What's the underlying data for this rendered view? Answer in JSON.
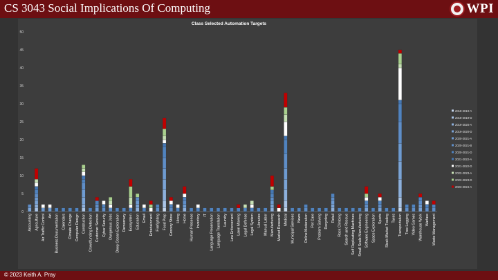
{
  "slide": {
    "title": "CS 3043 Social Implications Of Computing",
    "logo_text": "WPI",
    "footer": "© 2023 Keith A. Pray"
  },
  "colors": {
    "banner": "#6d0f12",
    "background": "#333333",
    "plot_background": "#3d3d3d"
  },
  "chart_data": {
    "type": "bar",
    "stacked": true,
    "title": "Class Selected Automation Targets",
    "ylim": [
      0,
      50
    ],
    "yticks": [
      0,
      5,
      10,
      15,
      20,
      25,
      30,
      35,
      40,
      45,
      50
    ],
    "grid": false,
    "legend_position": "right",
    "categories": [
      "Accounting",
      "Agriculture",
      "Air Traffic Control",
      "Art",
      "Business Documentation",
      "Calendars",
      "Climate Change",
      "Computer Design",
      "Construction",
      "Crowdfunding Detection",
      "Customer Service",
      "Cyber Security",
      "Dangerous Jobs",
      "Deep Ocean Exploration",
      "Democracy",
      "Ecosystem",
      "Education",
      "Email",
      "Entertainment",
      "Firefighting",
      "Food Prep",
      "Grocery Store",
      "Hiring",
      "Home",
      "Human Presence",
      "Inventory",
      "IT",
      "Language Preservation",
      "Language Translation",
      "Laundry",
      "Law Enforcement",
      "Lawn Mowing",
      "Legal Defense",
      "Legal System",
      "Libraries",
      "Manual Labor",
      "Manufacturing",
      "Market Research",
      "Medical",
      "Municipal Services",
      "News",
      "Online Moderation",
      "Pet Care",
      "Problem Solving",
      "Recycling",
      "Retail",
      "Rock Climbing",
      "Search and Rescue",
      "Self Replicating Machines",
      "Small Scale Manufacturing",
      "Software Engineering",
      "Space Exploration",
      "Sports",
      "Stock Market Trading",
      "Taxes",
      "Transportation",
      "Tree Logging",
      "Video Games",
      "Warehouse Work",
      "Warfare",
      "Waste Management"
    ],
    "series": [
      {
        "name": "2018-2019-A",
        "color": "#c6d8ee",
        "values": [
          0,
          0,
          0,
          0,
          0,
          0,
          0,
          0,
          0,
          0,
          0,
          0,
          0,
          0,
          0,
          0,
          0,
          0,
          0,
          0,
          1,
          0,
          0,
          0,
          0,
          0,
          0,
          0,
          0,
          0,
          0,
          0,
          0,
          0,
          0,
          0,
          0,
          0,
          1,
          0,
          0,
          0,
          0,
          0,
          0,
          0,
          0,
          0,
          0,
          0,
          0,
          0,
          0,
          0,
          0,
          1,
          0,
          0,
          0,
          0,
          0
        ]
      },
      {
        "name": "2018-2019-D",
        "color": "#a9c4e6",
        "values": [
          0,
          1,
          0,
          0,
          0,
          0,
          0,
          0,
          1,
          0,
          0,
          0,
          0,
          0,
          0,
          0,
          0,
          0,
          0,
          0,
          2,
          0,
          0,
          0,
          0,
          0,
          0,
          0,
          0,
          0,
          0,
          0,
          0,
          0,
          0,
          0,
          0,
          0,
          2,
          0,
          0,
          0,
          0,
          0,
          0,
          0,
          0,
          0,
          0,
          0,
          0,
          0,
          0,
          0,
          0,
          3,
          0,
          0,
          0,
          0,
          0
        ]
      },
      {
        "name": "2019-2020-A",
        "color": "#8db0dc",
        "values": [
          0,
          1,
          0,
          0,
          0,
          0,
          0,
          0,
          1,
          0,
          0,
          0,
          0,
          0,
          0,
          0,
          1,
          0,
          0,
          0,
          3,
          0,
          0,
          1,
          0,
          0,
          0,
          0,
          0,
          0,
          0,
          0,
          0,
          0,
          0,
          0,
          1,
          0,
          3,
          0,
          0,
          0,
          0,
          0,
          0,
          1,
          0,
          0,
          0,
          0,
          0,
          0,
          0,
          0,
          0,
          5,
          0,
          0,
          0,
          0,
          0
        ]
      },
      {
        "name": "2019-2020-D",
        "color": "#7ba4d6",
        "values": [
          1,
          1,
          0,
          0,
          0,
          0,
          0,
          0,
          2,
          0,
          0,
          0,
          0,
          0,
          0,
          0,
          1,
          0,
          0,
          0,
          3,
          0,
          0,
          0,
          0,
          0,
          0,
          0,
          0,
          0,
          0,
          0,
          0,
          0,
          0,
          0,
          1,
          0,
          3,
          0,
          0,
          0,
          0,
          0,
          0,
          1,
          0,
          0,
          0,
          0,
          1,
          0,
          1,
          0,
          0,
          5,
          0,
          0,
          1,
          0,
          0
        ]
      },
      {
        "name": "2020-2021-A",
        "color": "#6e9bd1",
        "values": [
          0,
          1,
          1,
          1,
          0,
          0,
          0,
          0,
          2,
          0,
          1,
          0,
          0,
          0,
          0,
          0,
          1,
          0,
          0,
          0,
          3,
          0,
          0,
          1,
          0,
          0,
          0,
          0,
          0,
          0,
          0,
          0,
          0,
          0,
          0,
          0,
          1,
          0,
          3,
          0,
          0,
          0,
          0,
          0,
          0,
          1,
          0,
          0,
          0,
          0,
          0,
          0,
          0,
          0,
          0,
          5,
          0,
          0,
          1,
          0,
          0
        ]
      },
      {
        "name": "2020-2021-B",
        "color": "#5f8ec8",
        "values": [
          1,
          1,
          0,
          0,
          0,
          0,
          0,
          0,
          2,
          0,
          1,
          1,
          1,
          0,
          0,
          0,
          1,
          0,
          0,
          1,
          3,
          1,
          0,
          1,
          0,
          0,
          0,
          0,
          0,
          0,
          0,
          0,
          0,
          0,
          0,
          0,
          1,
          0,
          4,
          0,
          0,
          1,
          0,
          0,
          0,
          1,
          0,
          0,
          0,
          0,
          1,
          0,
          1,
          0,
          0,
          6,
          1,
          1,
          1,
          1,
          1
        ]
      },
      {
        "name": "2020-2021-D",
        "color": "#5083bf",
        "values": [
          0,
          1,
          0,
          0,
          1,
          1,
          1,
          1,
          1,
          1,
          1,
          1,
          0,
          1,
          1,
          1,
          0,
          1,
          0,
          1,
          3,
          1,
          1,
          1,
          1,
          1,
          1,
          1,
          1,
          1,
          1,
          1,
          1,
          1,
          1,
          1,
          1,
          0,
          4,
          1,
          1,
          1,
          1,
          1,
          1,
          1,
          1,
          1,
          1,
          1,
          1,
          1,
          1,
          1,
          1,
          5,
          1,
          1,
          1,
          1,
          1
        ]
      },
      {
        "name": "2021-2022-A",
        "color": "#4577b3",
        "values": [
          0,
          1,
          0,
          0,
          0,
          0,
          0,
          0,
          1,
          0,
          0,
          0,
          0,
          0,
          0,
          0,
          0,
          0,
          0,
          0,
          1,
          0,
          0,
          0,
          0,
          0,
          0,
          0,
          0,
          0,
          0,
          0,
          0,
          0,
          0,
          0,
          1,
          0,
          1,
          0,
          0,
          0,
          0,
          0,
          0,
          0,
          0,
          0,
          0,
          0,
          0,
          0,
          0,
          0,
          0,
          1,
          0,
          0,
          0,
          0,
          0
        ]
      },
      {
        "name": "2021-2022-D",
        "color": "#ffffff",
        "values": [
          0,
          1,
          1,
          1,
          0,
          0,
          0,
          0,
          1,
          0,
          0,
          1,
          1,
          0,
          0,
          1,
          0,
          1,
          1,
          0,
          1,
          1,
          1,
          1,
          0,
          1,
          0,
          0,
          0,
          0,
          0,
          0,
          0,
          1,
          0,
          0,
          0,
          1,
          4,
          0,
          0,
          0,
          0,
          0,
          0,
          0,
          0,
          0,
          0,
          0,
          1,
          0,
          1,
          0,
          0,
          9,
          0,
          0,
          0,
          1,
          0
        ]
      },
      {
        "name": "2022-2023-A",
        "color": "#c6e0b4",
        "values": [
          0,
          1,
          0,
          0,
          0,
          0,
          0,
          0,
          1,
          0,
          0,
          0,
          1,
          0,
          0,
          2,
          0,
          0,
          0,
          0,
          1,
          0,
          0,
          0,
          0,
          0,
          0,
          0,
          0,
          0,
          0,
          0,
          1,
          1,
          0,
          0,
          0,
          0,
          2,
          0,
          0,
          0,
          0,
          0,
          0,
          0,
          0,
          0,
          0,
          0,
          0,
          0,
          0,
          0,
          0,
          1,
          0,
          0,
          0,
          0,
          0
        ]
      },
      {
        "name": "2022-2023-D",
        "color": "#a9d08e",
        "values": [
          0,
          0,
          0,
          0,
          0,
          0,
          0,
          0,
          1,
          0,
          0,
          0,
          1,
          0,
          0,
          3,
          1,
          0,
          1,
          0,
          2,
          0,
          0,
          0,
          0,
          0,
          0,
          0,
          0,
          0,
          0,
          0,
          0,
          0,
          0,
          0,
          1,
          0,
          2,
          0,
          0,
          0,
          0,
          0,
          0,
          0,
          0,
          0,
          0,
          0,
          1,
          0,
          0,
          0,
          0,
          3,
          0,
          0,
          0,
          0,
          0
        ]
      },
      {
        "name": "2023-2024-A",
        "color": "#c00000",
        "values": [
          0,
          3,
          0,
          0,
          0,
          0,
          0,
          0,
          0,
          0,
          1,
          0,
          0,
          0,
          0,
          2,
          0,
          0,
          1,
          0,
          3,
          1,
          0,
          2,
          0,
          0,
          0,
          0,
          0,
          0,
          0,
          1,
          0,
          0,
          0,
          0,
          3,
          1,
          4,
          0,
          0,
          0,
          0,
          0,
          0,
          0,
          0,
          0,
          0,
          0,
          2,
          0,
          1,
          0,
          0,
          1,
          0,
          0,
          1,
          0,
          1
        ]
      }
    ]
  }
}
